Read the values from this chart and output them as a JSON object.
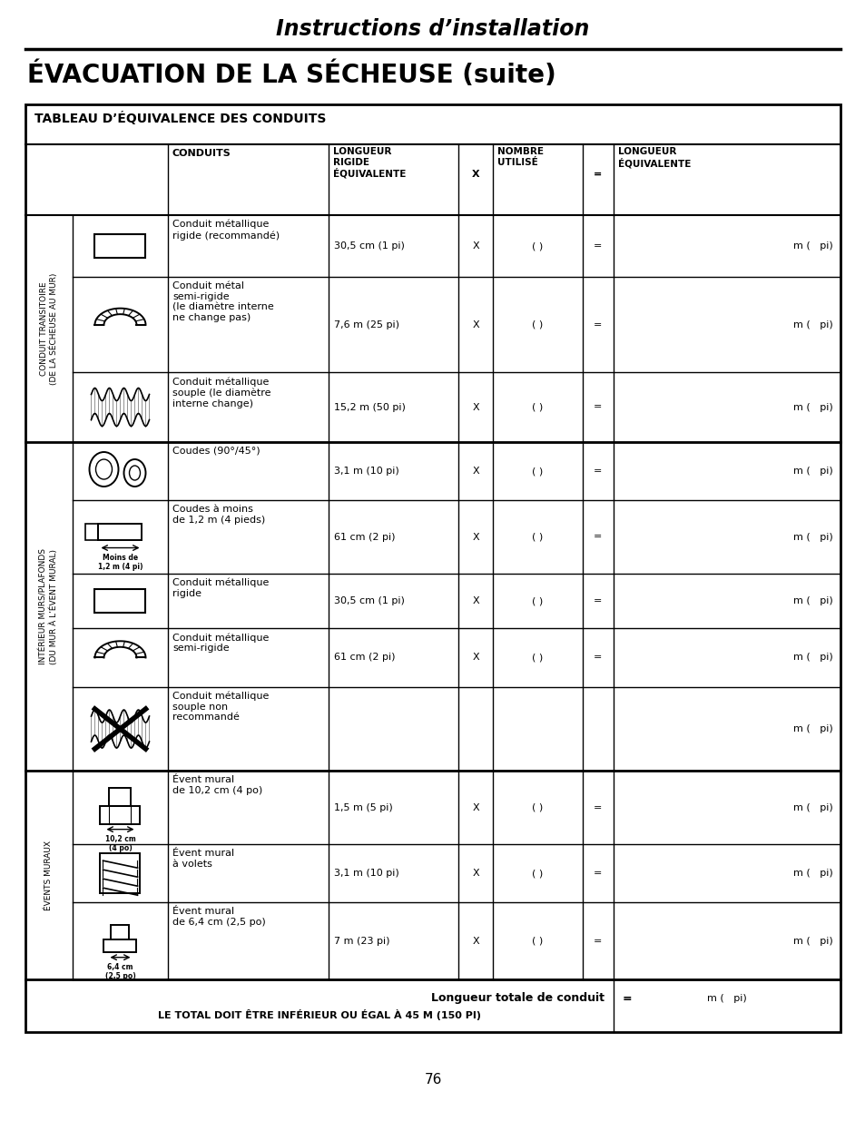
{
  "page_title": "Instructions d’installation",
  "section_title": "ÉVACUATION DE LA SÉCHEUSE (suite)",
  "table_title": "TABLEAU D’ÉQUIVALENCE DES CONDUITS",
  "col_headers": {
    "conduits": "CONDUITS",
    "longueur_rigide": "LONGUEUR\nRIGIDE\nÉQUIVALENTE",
    "x": "X",
    "nombre": "NOMBRE\nUTILISÉ",
    "eq": "=",
    "longueur_eq": "LONGUEUR\nÉQUIVALENTE"
  },
  "groups": [
    {
      "label": "CONDUIT TRANSITOIRE\n(DE LA SÉCHEUSE AU MUR)",
      "rows": [
        {
          "image": "rigid_rect",
          "conduit": "Conduit métallique\nrigide (recommandé)",
          "lr": "30,5 cm (1 pi)",
          "x": "X",
          "nb": "( )",
          "eq": "=",
          "le": "m (   pi)"
        },
        {
          "image": "semi_rigid_arc",
          "conduit": "Conduit métal\nsemi-rigide\n(le diamètre interne\nne change pas)",
          "lr": "7,6 m (25 pi)",
          "x": "X",
          "nb": "( )",
          "eq": "=",
          "le": "m (   pi)"
        },
        {
          "image": "flex_wavy",
          "conduit": "Conduit métallique\nsouple (le diamètre\ninterne change)",
          "lr": "15,2 m (50 pi)",
          "x": "X",
          "nb": "( )",
          "eq": "=",
          "le": "m (   pi)"
        }
      ]
    },
    {
      "label": "INTÉRIEUR MURS/PLAFONDS\n(DU MUR À L’ÉVENT MURAL)",
      "rows": [
        {
          "image": "elbows_pair",
          "conduit": "Coudes (90°/45°)",
          "lr": "3,1 m (10 pi)",
          "x": "X",
          "nb": "( )",
          "eq": "=",
          "le": "m (   pi)"
        },
        {
          "image": "short_elbow",
          "conduit": "Coudes à moins\nde 1,2 m (4 pieds)",
          "lr": "61 cm (2 pi)",
          "x": "X",
          "nb": "( )",
          "eq": "=",
          "le": "m (   pi)"
        },
        {
          "image": "rigid_rect",
          "conduit": "Conduit métallique\nrigide",
          "lr": "30,5 cm (1 pi)",
          "x": "X",
          "nb": "( )",
          "eq": "=",
          "le": "m (   pi)"
        },
        {
          "image": "semi_rigid_arc2",
          "conduit": "Conduit métallique\nsemi-rigide",
          "lr": "61 cm (2 pi)",
          "x": "X",
          "nb": "( )",
          "eq": "=",
          "le": "m (   pi)"
        },
        {
          "image": "flex_xed",
          "conduit": "Conduit métallique\nsouple non\nrecommandé",
          "lr": "",
          "x": "",
          "nb": "",
          "eq": "",
          "le": "m (   pi)"
        }
      ]
    },
    {
      "label": "ÉVENTS MURAUX",
      "rows": [
        {
          "image": "vent_4po",
          "conduit": "Évent mural\nde 10,2 cm (4 po)",
          "lr": "1,5 m (5 pi)",
          "x": "X",
          "nb": "( )",
          "eq": "=",
          "le": "m (   pi)"
        },
        {
          "image": "vent_volets",
          "conduit": "Évent mural\nà volets",
          "lr": "3,1 m (10 pi)",
          "x": "X",
          "nb": "( )",
          "eq": "=",
          "le": "m (   pi)"
        },
        {
          "image": "vent_25po",
          "conduit": "Évent mural\nde 6,4 cm (2,5 po)",
          "lr": "7 m (23 pi)",
          "x": "X",
          "nb": "( )",
          "eq": "=",
          "le": "m (   pi)"
        }
      ]
    }
  ],
  "footer_label": "Longueur totale de conduit",
  "footer_note": "LE TOTAL DOIT ÊTRE INFÉRIEUR OU ÉGAL À 45 M (150 PI)",
  "footer_val": "m (   pi)",
  "page_number": "76",
  "row_heights_rel": [
    85,
    130,
    95,
    80,
    100,
    75,
    80,
    115,
    100,
    80,
    105
  ]
}
